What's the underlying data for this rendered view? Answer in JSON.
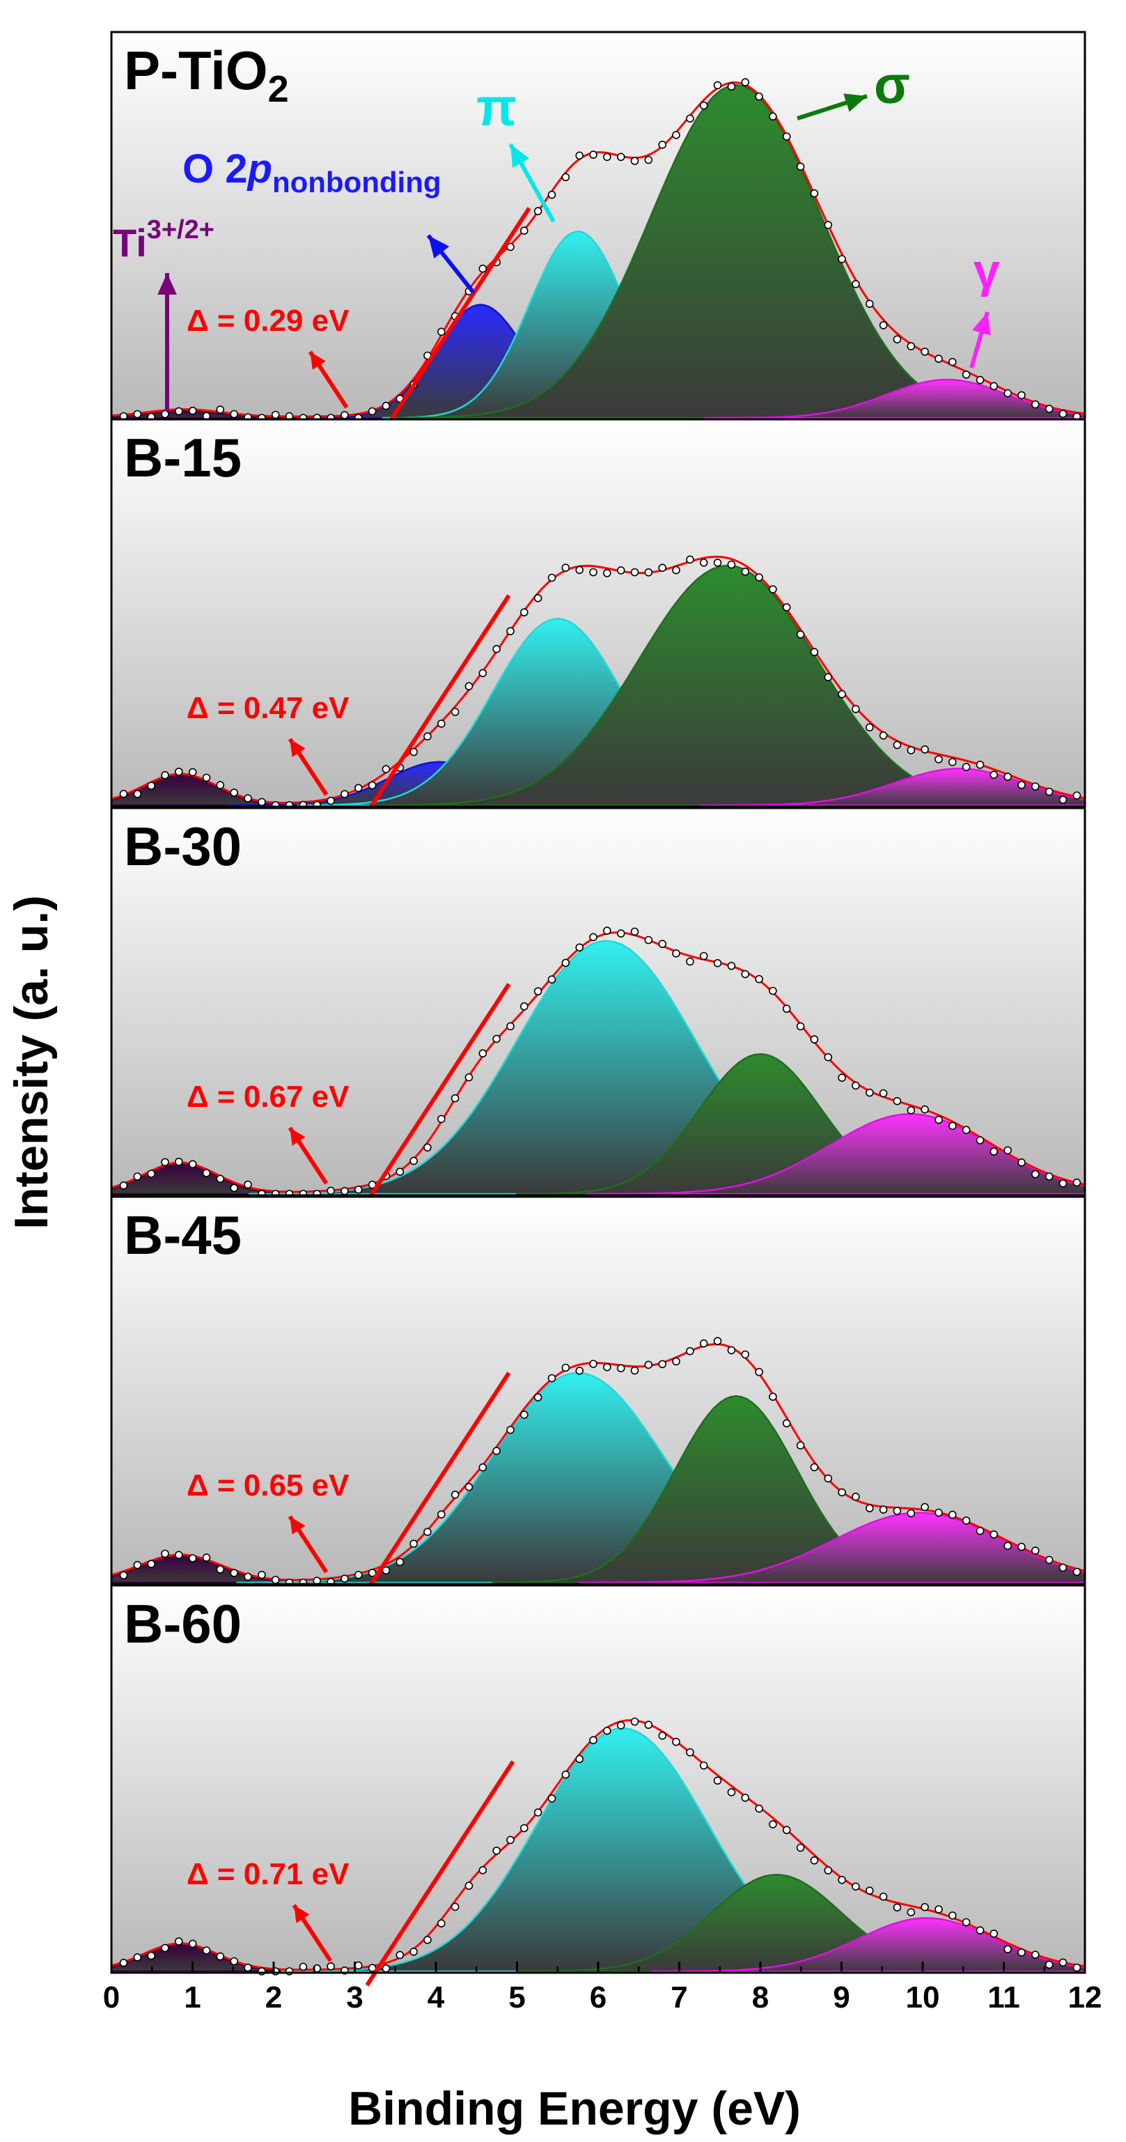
{
  "chart_data": {
    "type": "area",
    "title": "",
    "xlabel": "Binding Energy (eV)",
    "ylabel": "Intensity (a. u.)",
    "xlim": [
      0,
      12
    ],
    "x_ticks": [
      "0",
      "1",
      "2",
      "3",
      "4",
      "5",
      "6",
      "7",
      "8",
      "9",
      "10",
      "11",
      "12"
    ],
    "colors": {
      "ti": "#3a0040",
      "o2p": "#2a2aff",
      "pi": "#33f0f0",
      "sigma": "#2e8b2e",
      "gamma": "#ff33ff",
      "envelope": "#ff0000",
      "bg_top": "#ffffff",
      "bg_bottom": "#b8b8b8"
    },
    "annotations": {
      "ti": {
        "main": "Ti",
        "sup": "3+/2+"
      },
      "o2p": {
        "main": "O 2",
        "italic": "p",
        "sub": "nonbonding"
      },
      "pi": "π",
      "sigma": "σ",
      "gamma": "γ"
    },
    "panels": [
      {
        "name": "P-TiO",
        "name_sub": "2",
        "delta": "Δ = 0.29 eV",
        "edge_ev": 3.45,
        "components": [
          {
            "key": "ti",
            "center": 0.9,
            "sigma": 0.45,
            "height": 0.022
          },
          {
            "key": "o2p",
            "center": 4.55,
            "sigma": 0.55,
            "height": 0.34
          },
          {
            "key": "pi",
            "center": 5.75,
            "sigma": 0.6,
            "height": 0.56
          },
          {
            "key": "sigma",
            "center": 7.7,
            "sigma": 1.05,
            "height": 1.0
          },
          {
            "key": "gamma",
            "center": 10.3,
            "sigma": 0.75,
            "height": 0.115
          }
        ]
      },
      {
        "name": "B-15",
        "name_sub": "",
        "delta": "Δ = 0.47 eV",
        "edge_ev": 3.2,
        "components": [
          {
            "key": "ti",
            "center": 0.85,
            "sigma": 0.45,
            "height": 0.09
          },
          {
            "key": "o2p",
            "center": 4.05,
            "sigma": 0.65,
            "height": 0.13
          },
          {
            "key": "pi",
            "center": 5.5,
            "sigma": 0.8,
            "height": 0.56
          },
          {
            "key": "sigma",
            "center": 7.6,
            "sigma": 1.1,
            "height": 0.72
          },
          {
            "key": "gamma",
            "center": 10.45,
            "sigma": 0.8,
            "height": 0.11
          }
        ]
      },
      {
        "name": "B-30",
        "name_sub": "",
        "delta": "Δ = 0.67 eV",
        "edge_ev": 3.2,
        "components": [
          {
            "key": "ti",
            "center": 0.85,
            "sigma": 0.45,
            "height": 0.09
          },
          {
            "key": "o2p",
            "center": 4.5,
            "sigma": 0.45,
            "height": 0.12
          },
          {
            "key": "pi",
            "center": 6.1,
            "sigma": 1.1,
            "height": 0.76
          },
          {
            "key": "sigma",
            "center": 8.0,
            "sigma": 0.75,
            "height": 0.42
          },
          {
            "key": "gamma",
            "center": 9.85,
            "sigma": 1.0,
            "height": 0.24
          }
        ]
      },
      {
        "name": "B-45",
        "name_sub": "",
        "delta": "Δ = 0.65 eV",
        "edge_ev": 3.2,
        "components": [
          {
            "key": "ti",
            "center": 0.85,
            "sigma": 0.5,
            "height": 0.08
          },
          {
            "key": "o2p",
            "center": 4.15,
            "sigma": 0.3,
            "height": 0.03
          },
          {
            "key": "pi",
            "center": 5.75,
            "sigma": 1.05,
            "height": 0.63
          },
          {
            "key": "sigma",
            "center": 7.7,
            "sigma": 0.75,
            "height": 0.56
          },
          {
            "key": "gamma",
            "center": 9.95,
            "sigma": 1.05,
            "height": 0.21
          }
        ]
      },
      {
        "name": "B-60",
        "name_sub": "",
        "delta": "Δ = 0.71 eV",
        "edge_ev": 3.25,
        "components": [
          {
            "key": "ti",
            "center": 0.85,
            "sigma": 0.45,
            "height": 0.08
          },
          {
            "key": "o2p",
            "center": 4.5,
            "sigma": 0.45,
            "height": 0.12
          },
          {
            "key": "pi",
            "center": 6.3,
            "sigma": 1.05,
            "height": 0.73
          },
          {
            "key": "sigma",
            "center": 8.2,
            "sigma": 0.8,
            "height": 0.29
          },
          {
            "key": "gamma",
            "center": 10.05,
            "sigma": 0.85,
            "height": 0.16
          }
        ]
      }
    ]
  }
}
